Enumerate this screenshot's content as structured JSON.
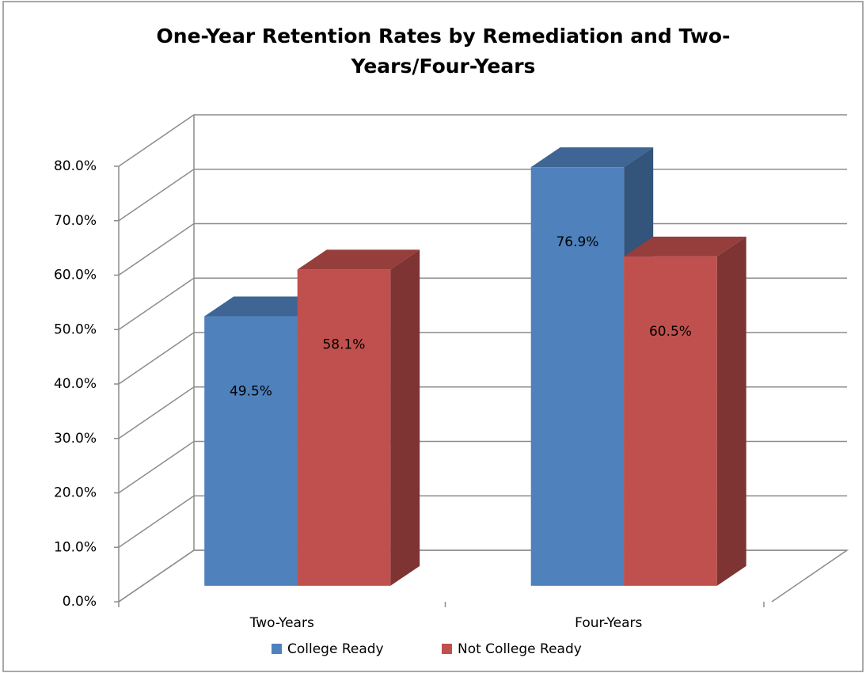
{
  "chart_data": {
    "type": "bar3d",
    "title": [
      "One-Year Retention Rates by Remediation and Two-",
      "Years/Four-Years"
    ],
    "categories": [
      "Two-Years",
      "Four-Years"
    ],
    "series": [
      {
        "name": "College Ready",
        "color": "#4f81bd",
        "values": [
          49.5,
          76.9
        ],
        "value_labels": [
          "49.5%",
          "76.9%"
        ]
      },
      {
        "name": "Not College Ready",
        "color": "#c0504d",
        "values": [
          58.1,
          60.5
        ],
        "value_labels": [
          "58.1%",
          "60.5%"
        ]
      }
    ],
    "ylim": [
      0,
      80
    ],
    "yticks": [
      {
        "value": 0,
        "label": "0.0%"
      },
      {
        "value": 10,
        "label": "10.0%"
      },
      {
        "value": 20,
        "label": "20.0%"
      },
      {
        "value": 30,
        "label": "30.0%"
      },
      {
        "value": 40,
        "label": "40.0%"
      },
      {
        "value": 50,
        "label": "50.0%"
      },
      {
        "value": 60,
        "label": "60.0%"
      },
      {
        "value": 70,
        "label": "70.0%"
      },
      {
        "value": 80,
        "label": "80.0%"
      }
    ],
    "grid": true,
    "legend": "bottom"
  }
}
